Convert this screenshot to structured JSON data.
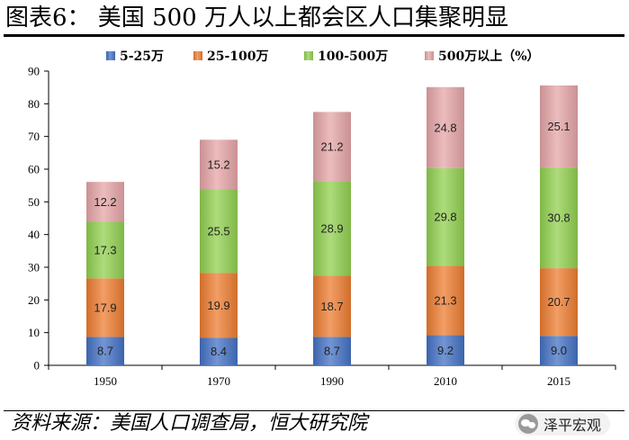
{
  "header": {
    "title": "图表6： 美国 500 万人以上都会区人口集聚明显"
  },
  "footer": {
    "source": "资料来源：美国人口调查局，恒大研究院",
    "badge": "泽平宏观"
  },
  "chart_data": {
    "type": "bar",
    "stacked": true,
    "title": "",
    "xlabel": "",
    "ylabel": "",
    "categories": [
      "1950",
      "1970",
      "1990",
      "2010",
      "2015"
    ],
    "ylim": [
      0,
      90
    ],
    "yticks": [
      "0",
      "10",
      "20",
      "30",
      "40",
      "50",
      "60",
      "70",
      "80",
      "90"
    ],
    "grid": false,
    "legend": "top",
    "series": [
      {
        "name": "5-25万",
        "color": "#4472c4",
        "values": [
          8.7,
          8.4,
          8.7,
          9.2,
          9.0
        ]
      },
      {
        "name": "25-100万",
        "color": "#ed7d31",
        "values": [
          17.9,
          19.9,
          18.7,
          21.3,
          20.7
        ]
      },
      {
        "name": "100-500万",
        "color": "#92d050",
        "values": [
          17.3,
          25.5,
          28.9,
          29.8,
          30.8
        ]
      },
      {
        "name": "500万以上（%）",
        "color": "#e6a5a7",
        "values": [
          12.2,
          15.2,
          21.2,
          24.8,
          25.1
        ]
      }
    ]
  }
}
